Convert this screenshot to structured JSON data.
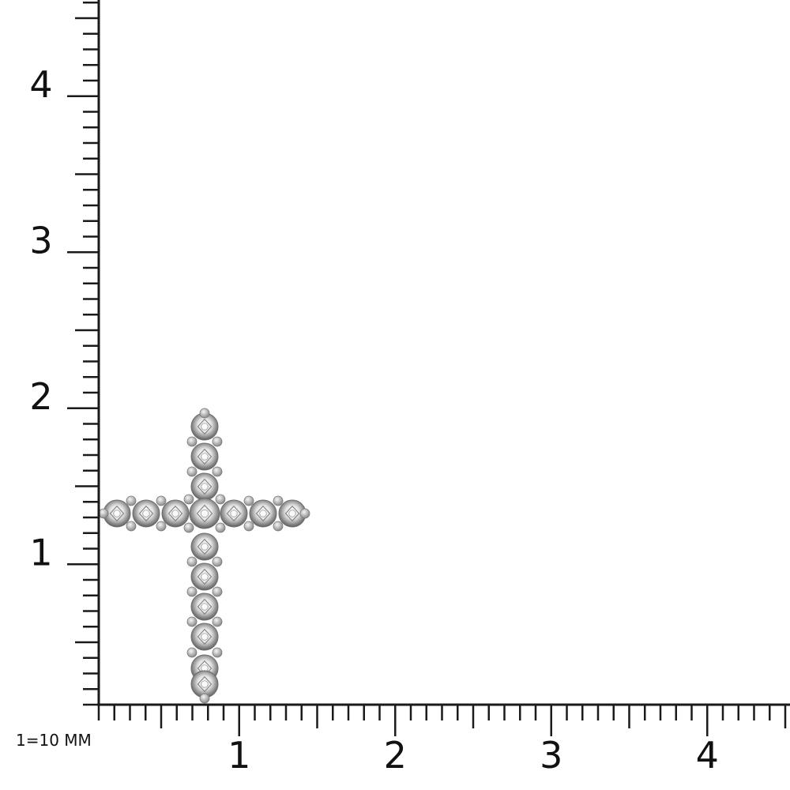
{
  "ruler": {
    "scale_note": "1=10 MM",
    "x_labels": [
      "1",
      "2",
      "3",
      "4"
    ],
    "y_labels": [
      "1",
      "2",
      "3",
      "4"
    ],
    "minor_divisions_per_unit": 10,
    "line_color": "#1a1a1a"
  },
  "product": {
    "shape": "cross pendant",
    "stone_color": "#f2f2f2",
    "metal_color": "#8a8a8a"
  }
}
